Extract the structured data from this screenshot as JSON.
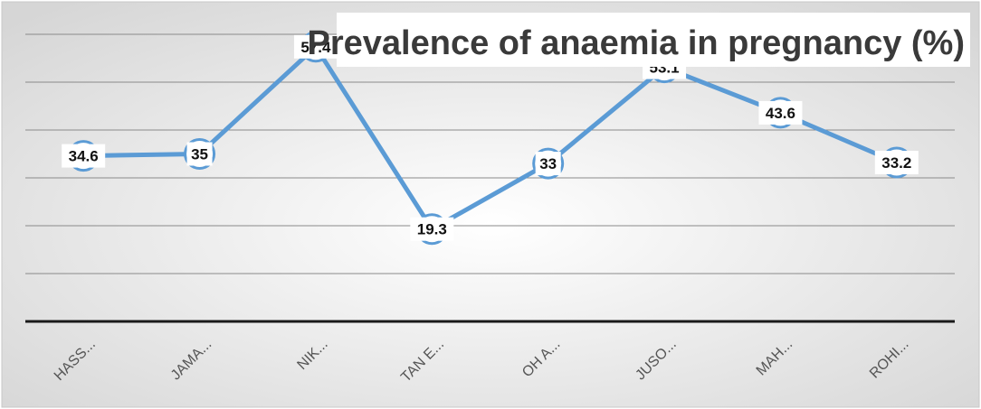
{
  "chart_data": {
    "type": "line",
    "title": "Prevalence of anaemia in pregnancy (%)",
    "categories": [
      "HASS...",
      "JAMA...",
      "NIK...",
      "TAN E...",
      "OH A...",
      "JUSO...",
      "MAH...",
      "ROHI..."
    ],
    "series": [
      {
        "values": [
          34.6,
          35,
          57.4,
          19.3,
          33,
          53.1,
          43.6,
          33.2
        ]
      }
    ],
    "data_labels": [
      "34.6",
      "35",
      "57.4",
      "19.3",
      "33",
      "53.1",
      "43.6",
      "33.2"
    ],
    "xlabel": "",
    "ylabel": "",
    "ylim": [
      0,
      60
    ],
    "grid": true,
    "legend": "none",
    "colors": {
      "line": "#5b9bd5",
      "background": "#efefef",
      "gridline": "#8a8a8a",
      "baseline": "#1a1a1a",
      "title": "#3a3a3a"
    }
  }
}
